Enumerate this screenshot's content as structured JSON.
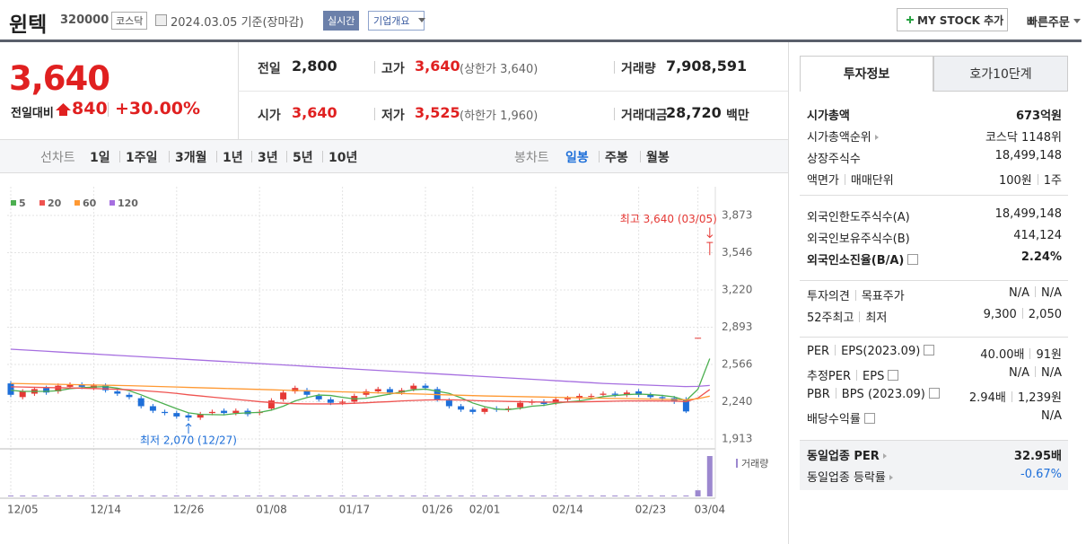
{
  "header": {
    "name": "윈텍",
    "code": "320000",
    "market": "코스닥",
    "date": "2024.03.05 기준(장마감)",
    "realtime": "실시간",
    "overview": "기업개요",
    "mystock": "MY STOCK 추가",
    "quick_order": "빠른주문"
  },
  "price": {
    "current": "3,640",
    "change_label": "전일대비",
    "change": "840",
    "change_pct": "+30.00%"
  },
  "quote": {
    "rows": [
      [
        {
          "label": "전일",
          "value": "2,800"
        },
        {
          "label": "고가",
          "value": "3,640",
          "extra": "(상한가 3,640)"
        },
        {
          "label": "거래량",
          "value": "7,908,591"
        }
      ],
      [
        {
          "label": "시가",
          "value": "3,640"
        },
        {
          "label": "저가",
          "value": "3,525",
          "extra": "(하한가 1,960)"
        },
        {
          "label": "거래대금",
          "value": "28,720",
          "unit": "백만"
        }
      ]
    ]
  },
  "tabs": {
    "line_label": "선차트",
    "line": [
      "1일",
      "1주일",
      "3개월",
      "1년",
      "3년",
      "5년",
      "10년"
    ],
    "candle_label": "봉차트",
    "candle": [
      "일봉",
      "주봉",
      "월봉"
    ]
  },
  "chart_data": {
    "type": "candlestick",
    "categories": [
      "12/05",
      null,
      null,
      null,
      null,
      null,
      null,
      "12/14",
      null,
      null,
      null,
      null,
      null,
      null,
      "12/26",
      null,
      null,
      null,
      null,
      null,
      null,
      "01/08",
      null,
      null,
      null,
      null,
      null,
      null,
      "01/17",
      null,
      null,
      null,
      null,
      null,
      null,
      "01/26",
      null,
      null,
      null,
      "02/01",
      null,
      null,
      null,
      null,
      null,
      null,
      "02/14",
      null,
      null,
      null,
      null,
      null,
      null,
      "02/23",
      null,
      null,
      null,
      null,
      "03/04",
      null
    ],
    "open": [
      2400,
      2280,
      2310,
      2360,
      2330,
      2370,
      2390,
      2360,
      2380,
      2330,
      2300,
      2270,
      2200,
      2150,
      2140,
      2120,
      2100,
      2140,
      2160,
      2140,
      2160,
      2140,
      2180,
      2260,
      2330,
      2340,
      2290,
      2260,
      2230,
      2240,
      2300,
      2330,
      2350,
      2320,
      2350,
      2380,
      2350,
      2250,
      2200,
      2170,
      2150,
      2180,
      2170,
      2190,
      2230,
      2240,
      2230,
      2260,
      2270,
      2290,
      2300,
      2310,
      2300,
      2330,
      2300,
      2280,
      2270,
      2260,
      2800,
      3640
    ],
    "high": [
      2420,
      2350,
      2370,
      2380,
      2400,
      2410,
      2410,
      2400,
      2400,
      2350,
      2320,
      2290,
      2220,
      2170,
      2160,
      2140,
      2150,
      2170,
      2180,
      2180,
      2180,
      2170,
      2270,
      2340,
      2380,
      2360,
      2310,
      2280,
      2260,
      2310,
      2350,
      2370,
      2370,
      2360,
      2400,
      2400,
      2370,
      2270,
      2220,
      2190,
      2200,
      2200,
      2200,
      2250,
      2260,
      2260,
      2280,
      2290,
      2310,
      2310,
      2330,
      2330,
      2340,
      2350,
      2320,
      2300,
      2290,
      2280,
      2800,
      3640
    ],
    "low": [
      2280,
      2260,
      2290,
      2300,
      2310,
      2350,
      2350,
      2340,
      2320,
      2290,
      2260,
      2180,
      2140,
      2120,
      2090,
      2070,
      2080,
      2120,
      2120,
      2120,
      2110,
      2120,
      2160,
      2240,
      2310,
      2280,
      2240,
      2210,
      2210,
      2220,
      2280,
      2310,
      2300,
      2300,
      2330,
      2340,
      2240,
      2180,
      2150,
      2130,
      2130,
      2150,
      2150,
      2170,
      2210,
      2200,
      2210,
      2240,
      2250,
      2270,
      2280,
      2280,
      2280,
      2280,
      2260,
      2250,
      2220,
      2140,
      2800,
      3525
    ],
    "close": [
      2300,
      2330,
      2350,
      2320,
      2380,
      2390,
      2370,
      2380,
      2340,
      2310,
      2280,
      2200,
      2160,
      2140,
      2110,
      2100,
      2130,
      2150,
      2140,
      2160,
      2130,
      2150,
      2250,
      2320,
      2360,
      2300,
      2260,
      2230,
      2240,
      2290,
      2330,
      2350,
      2320,
      2340,
      2380,
      2360,
      2260,
      2200,
      2170,
      2150,
      2180,
      2170,
      2180,
      2230,
      2240,
      2220,
      2260,
      2270,
      2290,
      2290,
      2310,
      2300,
      2320,
      2300,
      2280,
      2270,
      2240,
      2154,
      2800,
      3640
    ],
    "up_color": "#e53935",
    "down_color": "#1e6fd9",
    "series": [
      {
        "name": "5",
        "color": "#4caf50",
        "values": [
          2340,
          2330,
          2330,
          2330,
          2336,
          2354,
          2362,
          2368,
          2372,
          2358,
          2336,
          2300,
          2258,
          2218,
          2178,
          2142,
          2128,
          2126,
          2124,
          2136,
          2142,
          2146,
          2166,
          2200,
          2246,
          2276,
          2298,
          2294,
          2278,
          2264,
          2270,
          2288,
          2306,
          2326,
          2344,
          2350,
          2332,
          2312,
          2274,
          2228,
          2196,
          2174,
          2170,
          2182,
          2200,
          2208,
          2226,
          2238,
          2246,
          2264,
          2284,
          2294,
          2302,
          2306,
          2302,
          2294,
          2282,
          2249,
          2349,
          2617
        ]
      },
      {
        "name": "20",
        "color": "#ef5350",
        "values": [
          2370,
          2368,
          2366,
          2364,
          2362,
          2360,
          2358,
          2355,
          2352,
          2348,
          2344,
          2338,
          2330,
          2322,
          2312,
          2300,
          2290,
          2280,
          2270,
          2260,
          2250,
          2240,
          2232,
          2226,
          2222,
          2220,
          2220,
          2220,
          2222,
          2226,
          2230,
          2236,
          2240,
          2246,
          2250,
          2254,
          2256,
          2256,
          2254,
          2250,
          2246,
          2244,
          2242,
          2240,
          2238,
          2236,
          2236,
          2236,
          2238,
          2240,
          2242,
          2244,
          2246,
          2246,
          2246,
          2245,
          2244,
          2240,
          2272,
          2346
        ]
      },
      {
        "name": "60",
        "color": "#ff9933",
        "values": [
          2400,
          2398,
          2396,
          2394,
          2392,
          2390,
          2388,
          2386,
          2384,
          2382,
          2380,
          2377,
          2374,
          2371,
          2368,
          2365,
          2362,
          2359,
          2356,
          2353,
          2350,
          2347,
          2344,
          2341,
          2338,
          2335,
          2332,
          2329,
          2326,
          2323,
          2320,
          2317,
          2314,
          2311,
          2308,
          2305,
          2302,
          2299,
          2296,
          2293,
          2290,
          2288,
          2286,
          2284,
          2282,
          2280,
          2278,
          2276,
          2274,
          2272,
          2270,
          2268,
          2266,
          2264,
          2262,
          2260,
          2258,
          2256,
          2266,
          2288
        ]
      },
      {
        "name": "120",
        "color": "#a66fe0",
        "values": [
          2700,
          2694,
          2688,
          2682,
          2676,
          2670,
          2664,
          2658,
          2652,
          2646,
          2640,
          2634,
          2628,
          2622,
          2616,
          2610,
          2604,
          2598,
          2592,
          2586,
          2580,
          2574,
          2568,
          2562,
          2556,
          2550,
          2544,
          2538,
          2532,
          2526,
          2520,
          2514,
          2508,
          2502,
          2496,
          2490,
          2484,
          2478,
          2472,
          2466,
          2460,
          2454,
          2448,
          2442,
          2436,
          2430,
          2424,
          2418,
          2412,
          2406,
          2400,
          2396,
          2392,
          2388,
          2384,
          2380,
          2376,
          2372,
          2374,
          2382
        ]
      }
    ],
    "volume_label": "거래량",
    "volume_color": "#9c88cf",
    "volume": [
      60000,
      45000,
      40000,
      35000,
      50000,
      42000,
      38000,
      30000,
      36000,
      40000,
      38000,
      55000,
      48000,
      42000,
      50000,
      60000,
      45000,
      40000,
      35000,
      30000,
      38000,
      40000,
      120000,
      95000,
      60000,
      50000,
      45000,
      38000,
      35000,
      50000,
      55000,
      48000,
      40000,
      42000,
      70000,
      50000,
      60000,
      45000,
      40000,
      38000,
      42000,
      36000,
      34000,
      45000,
      40000,
      38000,
      42000,
      40000,
      45000,
      38000,
      40000,
      36000,
      42000,
      38000,
      35000,
      34000,
      40000,
      65000,
      1200000,
      7908591
    ],
    "ylim": [
      1826,
      4125
    ],
    "yticks": [
      {
        "value": 1913,
        "label": "1,913"
      },
      {
        "value": 2240,
        "label": "2,240"
      },
      {
        "value": 2566,
        "label": "2,566"
      },
      {
        "value": 2893,
        "label": "2,893"
      },
      {
        "value": 3220,
        "label": "3,220"
      },
      {
        "value": 3546,
        "label": "3,546"
      },
      {
        "value": 3873,
        "label": "3,873"
      }
    ],
    "grid": true,
    "annotations": {
      "high": "최고 3,640 (03/05)",
      "low": "최저 2,070 (12/27)"
    }
  },
  "invest": {
    "tabs": [
      "투자정보",
      "호가10단계"
    ],
    "groups": [
      [
        {
          "label": [
            "시가총액"
          ],
          "value": [
            "673억원"
          ],
          "bold": true
        },
        {
          "label": [
            "시가총액순위"
          ],
          "value": [
            "코스닥 1148위"
          ],
          "arrow": true
        },
        {
          "label": [
            "상장주식수"
          ],
          "value": [
            "18,499,148"
          ]
        },
        {
          "label": [
            "액면가",
            "매매단위"
          ],
          "value": [
            "100원",
            "1주"
          ]
        }
      ],
      [
        {
          "label": [
            "외국인한도주식수(A)"
          ],
          "value": [
            "18,499,148"
          ]
        },
        {
          "label": [
            "외국인보유주식수(B)"
          ],
          "value": [
            "414,124"
          ]
        },
        {
          "label": [
            "외국인소진율(B/A)"
          ],
          "value": [
            "2.24%"
          ],
          "bold": true,
          "help": true
        }
      ],
      [
        {
          "label": [
            "투자의견",
            "목표주가"
          ],
          "value": [
            "N/A",
            "N/A"
          ]
        },
        {
          "label": [
            "52주최고",
            "최저"
          ],
          "value": [
            "9,300",
            "2,050"
          ]
        }
      ],
      [
        {
          "label": [
            "PER",
            "EPS(2023.09)"
          ],
          "value": [
            "40.00배",
            "91원"
          ],
          "help": true
        },
        {
          "label": [
            "추정PER",
            "EPS"
          ],
          "value": [
            "N/A",
            "N/A"
          ],
          "help": true
        },
        {
          "label": [
            "PBR",
            "BPS (2023.09)"
          ],
          "value": [
            "2.94배",
            "1,239원"
          ],
          "help": true
        },
        {
          "label": [
            "배당수익률"
          ],
          "value": [
            "N/A"
          ],
          "help": true
        }
      ],
      [
        {
          "label": [
            "동일업종 PER"
          ],
          "value": [
            "32.95배"
          ],
          "bold": true,
          "arrow": true
        },
        {
          "label": [
            "동일업종 등락률"
          ],
          "value": [
            "-0.67%"
          ],
          "arrow": true,
          "blue": true
        }
      ]
    ]
  }
}
